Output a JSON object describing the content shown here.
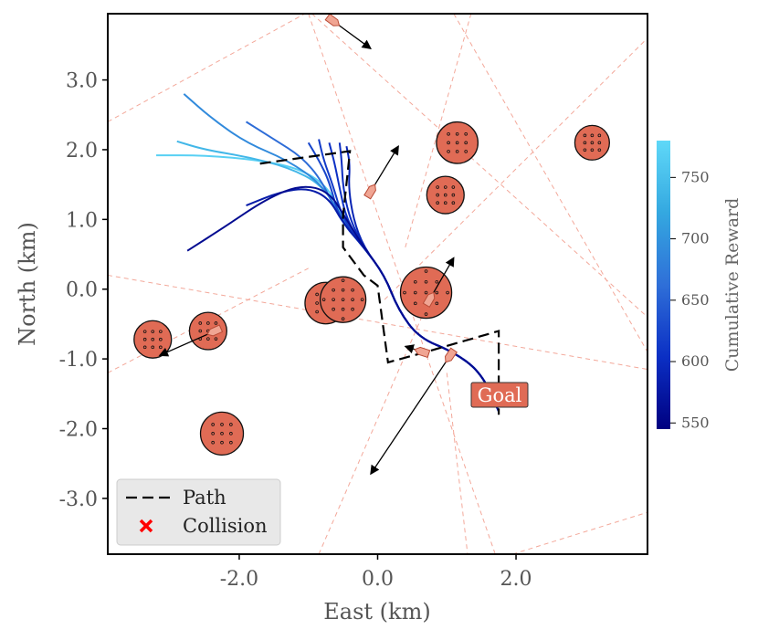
{
  "chart_data": {
    "type": "line",
    "title": "",
    "xlabel": "East (km)",
    "ylabel": "North (km)",
    "xlim": [
      -3.9,
      3.9
    ],
    "ylim": [
      -3.8,
      3.95
    ],
    "xticks": [
      -2.0,
      0.0,
      2.0
    ],
    "xtick_labels": [
      "-2.0",
      "0.0",
      "2.0"
    ],
    "yticks": [
      3.0,
      2.0,
      1.0,
      0.0,
      -1.0,
      -2.0,
      -3.0
    ],
    "ytick_labels": [
      "3.0",
      "2.0",
      "1.0",
      "0.0",
      "-1.0",
      "-2.0",
      "-3.0"
    ],
    "grid": false,
    "legend": {
      "placement": "bottom-left",
      "entries": [
        {
          "label": "Path",
          "marker": "dashed-line",
          "color": "#000000"
        },
        {
          "label": "Collision",
          "marker": "x",
          "color": "#ff0000"
        }
      ]
    },
    "colorbar": {
      "label": "Cumulative Reward",
      "range": [
        545,
        780
      ],
      "ticks": [
        550,
        600,
        650,
        700,
        750
      ],
      "tick_labels": [
        "550",
        "600",
        "650",
        "700",
        "750"
      ],
      "colors": [
        "#000080",
        "#0b2fc4",
        "#2f6fd8",
        "#34a8e0",
        "#5fd8f8"
      ]
    },
    "goal": {
      "label": "Goal",
      "x": 1.75,
      "y": -1.5,
      "color": "#e06b55"
    },
    "path": {
      "name": "Path",
      "x": [
        -1.7,
        -0.4,
        -0.5,
        -0.5,
        -0.2,
        0.0,
        0.15,
        0.7,
        1.75,
        1.75
      ],
      "y": [
        1.8,
        1.98,
        1.05,
        0.6,
        0.2,
        0.05,
        -1.05,
        -0.9,
        -0.6,
        -1.8
      ]
    },
    "trajectories": [
      {
        "reward": 770,
        "x": [
          -3.2,
          -2.5,
          -1.7,
          -1.1,
          -0.7,
          -0.5,
          -0.2,
          0.1,
          0.3,
          0.6,
          1.1,
          1.5,
          1.75
        ],
        "y": [
          1.92,
          1.92,
          1.85,
          1.72,
          1.45,
          1.0,
          0.6,
          0.2,
          -0.3,
          -0.7,
          -0.9,
          -1.2,
          -1.75
        ]
      },
      {
        "reward": 740,
        "x": [
          -2.9,
          -2.5,
          -1.9,
          -1.3,
          -0.8,
          -0.5,
          -0.2,
          0.1,
          0.3,
          0.6,
          1.1,
          1.5,
          1.75
        ],
        "y": [
          2.12,
          2.0,
          1.9,
          1.75,
          1.5,
          1.0,
          0.6,
          0.2,
          -0.3,
          -0.7,
          -0.9,
          -1.2,
          -1.75
        ]
      },
      {
        "reward": 690,
        "x": [
          -2.8,
          -2.4,
          -1.9,
          -1.3,
          -0.8,
          -0.5,
          -0.2,
          0.1,
          0.3,
          0.6,
          1.1,
          1.5,
          1.75
        ],
        "y": [
          2.8,
          2.45,
          2.1,
          1.85,
          1.5,
          1.0,
          0.6,
          0.2,
          -0.3,
          -0.7,
          -0.9,
          -1.2,
          -1.75
        ]
      },
      {
        "reward": 660,
        "x": [
          -1.9,
          -1.5,
          -1.1,
          -0.8,
          -0.55,
          -0.2,
          0.1,
          0.3,
          0.6,
          1.1,
          1.5,
          1.75
        ],
        "y": [
          2.4,
          2.15,
          1.9,
          1.55,
          1.0,
          0.6,
          0.2,
          -0.3,
          -0.7,
          -0.9,
          -1.2,
          -1.75
        ]
      },
      {
        "reward": 625,
        "x": [
          -1.0,
          -0.85,
          -0.7,
          -0.55,
          -0.2,
          0.1,
          0.3,
          0.6,
          1.1,
          1.5,
          1.75
        ],
        "y": [
          2.1,
          1.85,
          1.55,
          1.0,
          0.6,
          0.2,
          -0.3,
          -0.7,
          -0.9,
          -1.2,
          -1.75
        ]
      },
      {
        "reward": 615,
        "x": [
          -0.85,
          -0.78,
          -0.65,
          -0.5,
          -0.2,
          0.1,
          0.3,
          0.6,
          1.1,
          1.5,
          1.75
        ],
        "y": [
          2.15,
          1.85,
          1.5,
          1.0,
          0.6,
          0.2,
          -0.3,
          -0.7,
          -0.9,
          -1.2,
          -1.75
        ]
      },
      {
        "reward": 605,
        "x": [
          -0.7,
          -0.62,
          -0.55,
          -0.45,
          -0.2,
          0.1,
          0.3,
          0.6,
          1.1,
          1.5,
          1.75
        ],
        "y": [
          2.1,
          1.8,
          1.45,
          1.0,
          0.6,
          0.2,
          -0.3,
          -0.7,
          -0.9,
          -1.2,
          -1.75
        ]
      },
      {
        "reward": 600,
        "x": [
          -0.55,
          -0.52,
          -0.5,
          -0.4,
          -0.2,
          0.1,
          0.3,
          0.6,
          1.1,
          1.5,
          1.75
        ],
        "y": [
          2.1,
          1.85,
          1.45,
          1.0,
          0.6,
          0.2,
          -0.3,
          -0.7,
          -0.9,
          -1.2,
          -1.75
        ]
      },
      {
        "reward": 590,
        "x": [
          -0.45,
          -0.4,
          -0.42,
          -0.35,
          -0.2,
          0.1,
          0.3,
          0.6,
          1.1,
          1.5,
          1.75
        ],
        "y": [
          2.05,
          1.8,
          1.45,
          1.0,
          0.6,
          0.2,
          -0.3,
          -0.7,
          -0.9,
          -1.2,
          -1.75
        ]
      },
      {
        "reward": 580,
        "x": [
          -1.9,
          -1.4,
          -1.0,
          -0.7,
          -0.5,
          -0.2,
          0.1,
          0.3,
          0.6,
          1.1,
          1.5,
          1.75
        ],
        "y": [
          1.2,
          1.4,
          1.45,
          1.3,
          0.95,
          0.6,
          0.2,
          -0.3,
          -0.7,
          -0.9,
          -1.2,
          -1.75
        ]
      },
      {
        "reward": 560,
        "x": [
          -2.75,
          -2.2,
          -1.6,
          -1.1,
          -0.7,
          -0.45,
          -0.2,
          0.1,
          0.3,
          0.6,
          1.1,
          1.5,
          1.75
        ],
        "y": [
          0.55,
          0.9,
          1.3,
          1.5,
          1.4,
          1.0,
          0.6,
          0.2,
          -0.3,
          -0.7,
          -0.9,
          -1.2,
          -1.75
        ]
      }
    ],
    "obstacles": [
      {
        "x": 1.15,
        "y": 2.1,
        "r": 0.3
      },
      {
        "x": 3.1,
        "y": 2.1,
        "r": 0.25
      },
      {
        "x": 0.98,
        "y": 1.35,
        "r": 0.27
      },
      {
        "x": -0.75,
        "y": -0.2,
        "r": 0.3
      },
      {
        "x": -0.5,
        "y": -0.15,
        "r": 0.33
      },
      {
        "x": 0.7,
        "y": -0.05,
        "r": 0.37
      },
      {
        "x": -3.25,
        "y": -0.72,
        "r": 0.27
      },
      {
        "x": -2.45,
        "y": -0.6,
        "r": 0.27
      },
      {
        "x": -2.25,
        "y": -2.07,
        "r": 0.31
      }
    ],
    "vessels": [
      {
        "x": -0.65,
        "y": 3.85,
        "dx": 0.55,
        "dy": -0.4
      },
      {
        "x": -0.1,
        "y": 1.4,
        "dx": 0.4,
        "dy": 0.65
      },
      {
        "x": 1.05,
        "y": -0.95,
        "dx": -1.15,
        "dy": -1.7
      },
      {
        "x": 0.65,
        "y": -0.9,
        "dx": -0.25,
        "dy": 0.08
      },
      {
        "x": 0.75,
        "y": -0.15,
        "dx": 0.35,
        "dy": 0.6
      },
      {
        "x": -2.35,
        "y": -0.6,
        "dx": -0.8,
        "dy": -0.35
      }
    ],
    "sensor_lines": [
      {
        "x": [
          -0.95,
          3.9
        ],
        "y": [
          3.95,
          -0.4
        ]
      },
      {
        "x": [
          -3.9,
          -1.05
        ],
        "y": [
          2.4,
          3.95
        ]
      },
      {
        "x": [
          -3.9,
          -1.0
        ],
        "y": [
          -1.2,
          0.3
        ]
      },
      {
        "x": [
          -3.9,
          3.9
        ],
        "y": [
          0.2,
          -1.15
        ]
      },
      {
        "x": [
          -1.0,
          1.7
        ],
        "y": [
          3.95,
          -3.8
        ]
      },
      {
        "x": [
          0.1,
          3.9
        ],
        "y": [
          -0.15,
          3.6
        ]
      },
      {
        "x": [
          1.1,
          3.9
        ],
        "y": [
          3.95,
          -0.9
        ]
      },
      {
        "x": [
          1.95,
          3.9
        ],
        "y": [
          -3.8,
          -3.2
        ]
      },
      {
        "x": [
          -0.85,
          0.9
        ],
        "y": [
          -3.8,
          0.2
        ]
      },
      {
        "x": [
          1.0,
          1.3
        ],
        "y": [
          -1.2,
          -3.8
        ]
      },
      {
        "x": [
          0.4,
          1.35
        ],
        "y": [
          0.6,
          3.95
        ]
      }
    ]
  }
}
